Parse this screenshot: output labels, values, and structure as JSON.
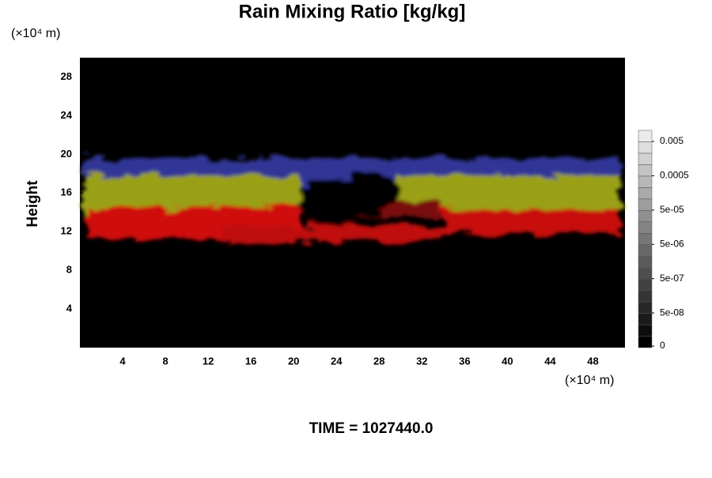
{
  "chart_data": {
    "type": "heatmap",
    "title": "Rain Mixing Ratio [kg/kg]",
    "x_unit": "(×10⁴ m)",
    "y_unit": "(×10⁴ m)",
    "y_label": "Height",
    "xlim": [
      0,
      51
    ],
    "xticks": [
      4,
      8,
      12,
      16,
      20,
      24,
      28,
      32,
      36,
      40,
      44,
      48
    ],
    "ylim": [
      0,
      30
    ],
    "yticks": [
      4,
      8,
      12,
      16,
      20,
      24,
      28
    ],
    "colorbar_ticks": [
      {
        "value": 0.005,
        "label": "0.005"
      },
      {
        "value": 0.0005,
        "label": "0.0005"
      },
      {
        "value": 5e-05,
        "label": "5e-05"
      },
      {
        "value": 5e-06,
        "label": "5e-06"
      },
      {
        "value": 5e-07,
        "label": "5e-07"
      },
      {
        "value": 5e-08,
        "label": "5e-08"
      },
      0
    ],
    "footer": "TIME = 1027440.0"
  }
}
